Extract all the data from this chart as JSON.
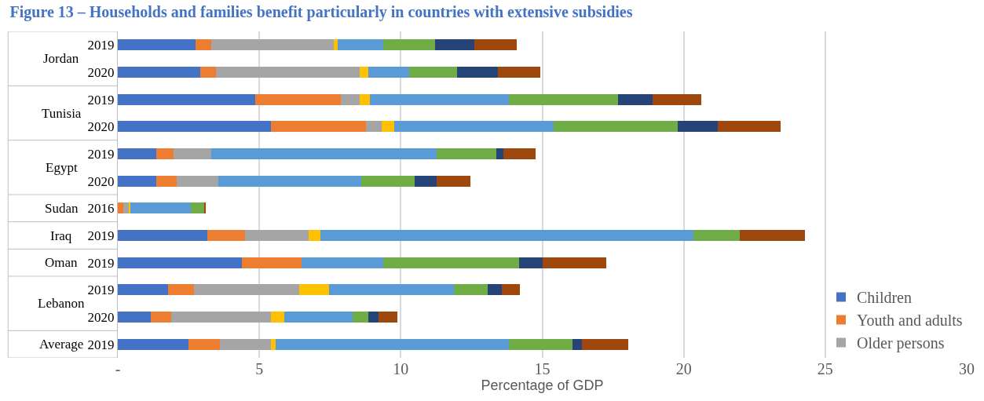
{
  "chart_data": {
    "type": "bar",
    "orientation": "horizontal",
    "stacked": true,
    "title": "Figure 13 – Households and families benefit particularly in countries with extensive subsidies",
    "xlabel": "Percentage of GDP",
    "categories": [
      [
        "Jordan",
        "2019"
      ],
      [
        null,
        "2020"
      ],
      [
        "Tunisia",
        "2019"
      ],
      [
        null,
        "2020"
      ],
      [
        "Egypt",
        "2019"
      ],
      [
        null,
        "2020"
      ],
      [
        "Sudan",
        "2016"
      ],
      [
        "Iraq",
        "2019"
      ],
      [
        "Oman",
        "2019"
      ],
      [
        "Lebanon",
        "2019"
      ],
      [
        null,
        "2020"
      ],
      [
        "Average",
        "2019"
      ]
    ],
    "series": [
      {
        "name": "Children",
        "color": "#4472c4",
        "values": [
          2.75,
          2.92,
          4.86,
          5.41,
          1.35,
          1.35,
          0,
          3.17,
          4.38,
          1.78,
          1.17,
          2.5
        ]
      },
      {
        "name": "Youth and adults",
        "color": "#ed7d31",
        "values": [
          0.55,
          0.56,
          3.02,
          3.37,
          0.61,
          0.72,
          0.2,
          1.33,
          2.11,
          0.91,
          0.73,
          1.1
        ]
      },
      {
        "name": "Older persons",
        "color": "#a5a5a5",
        "values": [
          4.34,
          5.06,
          0.66,
          0.55,
          1.35,
          1.47,
          0.18,
          2.23,
          0,
          3.73,
          3.5,
          1.8
        ]
      },
      {
        "color": "#ffc000",
        "values": [
          0.14,
          0.32,
          0.37,
          0.43,
          0,
          0,
          0.07,
          0.43,
          0,
          1.04,
          0.48,
          0.19
        ]
      },
      {
        "color": "#5b9bd5",
        "values": [
          1.61,
          1.44,
          4.91,
          5.63,
          7.95,
          5.07,
          2.12,
          13.18,
          2.9,
          4.41,
          2.41,
          8.23
        ]
      },
      {
        "color": "#70ad47",
        "values": [
          1.81,
          1.69,
          3.87,
          4.41,
          2.13,
          1.88,
          0.49,
          1.63,
          4.79,
          1.21,
          0.57,
          2.24
        ]
      },
      {
        "color": "#264478",
        "values": [
          1.4,
          1.44,
          1.2,
          1.39,
          0.24,
          0.77,
          0,
          0,
          0.84,
          0.49,
          0.34,
          0.35
        ]
      },
      {
        "color": "#9e480e",
        "values": [
          1.5,
          1.51,
          1.74,
          2.23,
          1.14,
          1.21,
          0.05,
          2.3,
          2.23,
          0.65,
          0.67,
          1.64
        ]
      }
    ],
    "xlim": [
      0,
      30
    ],
    "xticks": [
      {
        "value": 0,
        "label": "-"
      },
      5,
      10,
      15,
      20,
      25,
      30
    ],
    "grid": "x",
    "legend": "bottom right"
  }
}
